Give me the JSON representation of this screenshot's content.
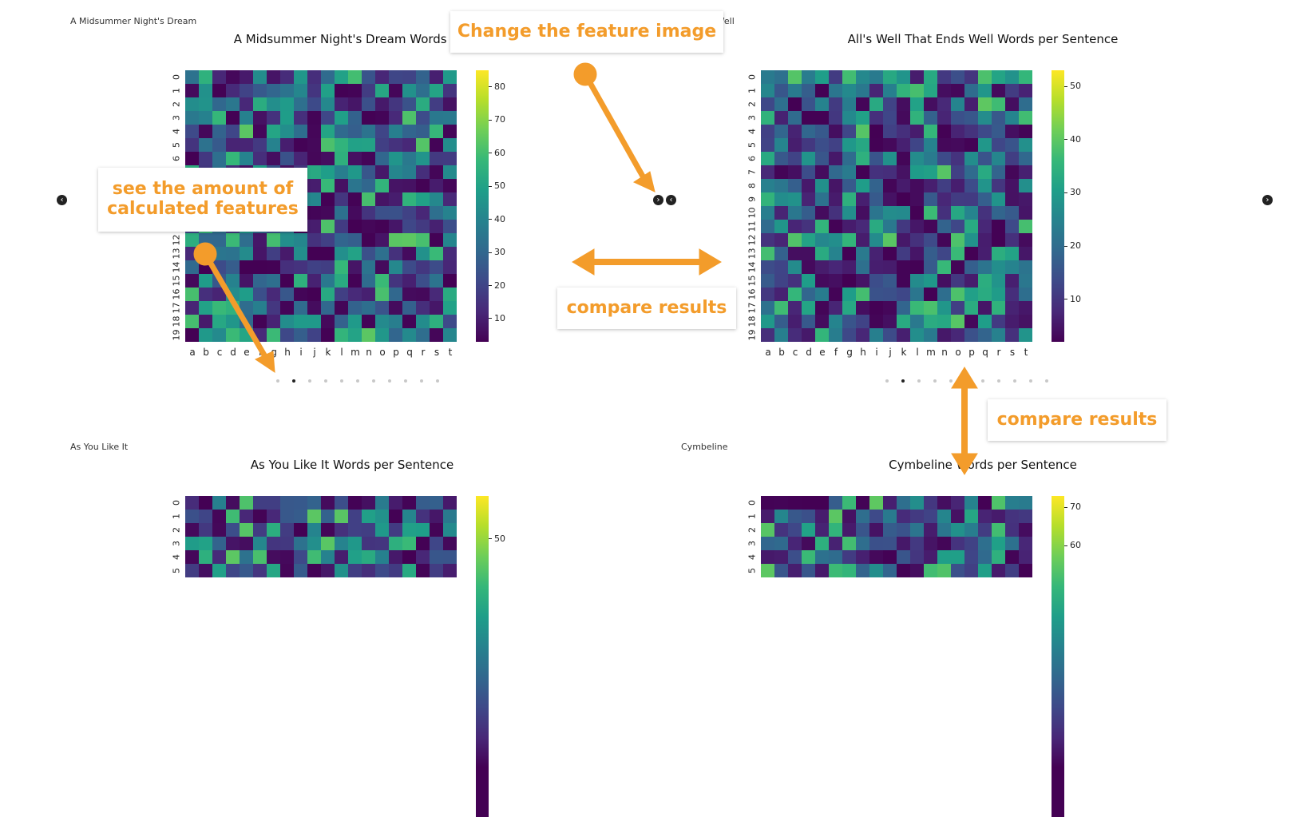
{
  "colors": {
    "accent": "#f39c2b",
    "viridis": [
      "#440154",
      "#482878",
      "#3e4989",
      "#31688e",
      "#26828e",
      "#1f9e89",
      "#35b779",
      "#6ece58",
      "#b5de2b",
      "#fde725"
    ]
  },
  "panels": [
    {
      "label": "A Midsummer Night's Dream",
      "title": "A Midsummer Night's Dream Words per",
      "cbar_ticks": [
        "80",
        "70",
        "60",
        "50",
        "40",
        "30",
        "20",
        "10"
      ],
      "vmax": 85,
      "vmin": 3,
      "seed": 11
    },
    {
      "label": "hat Ends Well",
      "title": "All's Well That Ends Well Words per Sentence",
      "cbar_ticks": [
        "50",
        "40",
        "30",
        "20",
        "10"
      ],
      "vmax": 53,
      "vmin": 2,
      "seed": 37
    },
    {
      "label": "As You Like It",
      "title": "As You Like It Words per Sentence",
      "cbar_ticks": [
        "50"
      ],
      "vmax": 59,
      "vmin": 2,
      "seed": 53
    },
    {
      "label": "Cymbeline",
      "title": "Cymbeline Words per Sentence",
      "cbar_ticks": [
        "70",
        "60"
      ],
      "vmax": 73,
      "vmin": 2,
      "seed": 71
    }
  ],
  "x_ticks": [
    "a",
    "b",
    "c",
    "d",
    "e",
    "f",
    "g",
    "h",
    "i",
    "j",
    "k",
    "l",
    "m",
    "n",
    "o",
    "p",
    "q",
    "r",
    "s",
    "t"
  ],
  "y_ticks": [
    "0",
    "1",
    "2",
    "3",
    "4",
    "5",
    "6",
    "7",
    "8",
    "9",
    "10",
    "11",
    "12",
    "13",
    "14",
    "15",
    "16",
    "17",
    "18",
    "19"
  ],
  "carousel": {
    "dot_count": 11,
    "active_index": 1
  },
  "nav": {
    "prev_icon": "‹",
    "next_icon": "›"
  },
  "callouts": {
    "change_feature": "Change the feature image",
    "amount_features_line1": "see the amount of",
    "amount_features_line2": "calculated features",
    "compare_results_1": "compare results",
    "compare_results_2": "compare results"
  }
}
